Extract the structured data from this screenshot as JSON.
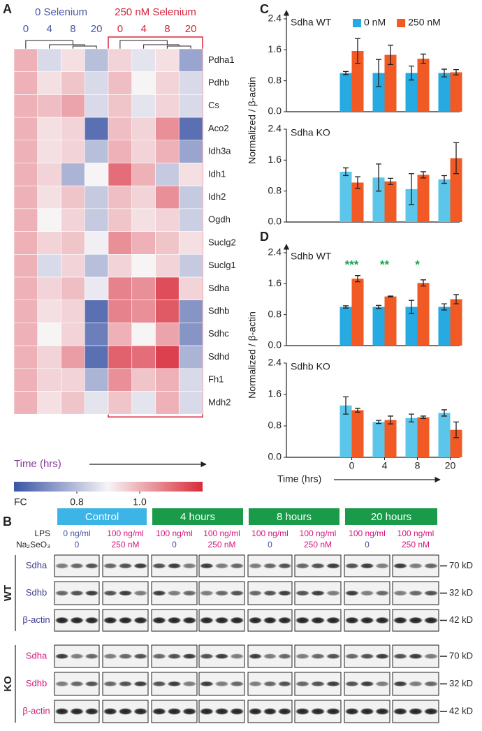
{
  "panel_labels": [
    "A",
    "B",
    "C",
    "D"
  ],
  "chart_data": [
    {
      "type": "heatmap",
      "groups": [
        {
          "label": "0 Selenium",
          "color": "#4a5aa8"
        },
        {
          "label": "250 nM Selenium",
          "color": "#d7263d"
        }
      ],
      "categories": [
        "0",
        "4",
        "8",
        "20",
        "0",
        "4",
        "8",
        "20"
      ],
      "rows": [
        "Pdha1",
        "Pdhb",
        "Cs",
        "Aco2",
        "Idh3a",
        "Idh1",
        "Idh2",
        "Ogdh",
        "Suclg2",
        "Suclg1",
        "Sdha",
        "Sdhb",
        "Sdhc",
        "Sdhd",
        "Fh1",
        "Mdh2"
      ],
      "values": [
        [
          1.0,
          0.85,
          0.93,
          0.8,
          0.95,
          0.87,
          0.93,
          0.75
        ],
        [
          1.0,
          0.93,
          0.97,
          0.85,
          0.98,
          0.9,
          0.95,
          0.85
        ],
        [
          1.0,
          0.98,
          1.02,
          0.85,
          0.97,
          0.87,
          0.95,
          0.85
        ],
        [
          1.0,
          0.93,
          0.95,
          0.65,
          0.98,
          0.95,
          1.05,
          0.65
        ],
        [
          1.0,
          0.93,
          0.95,
          0.8,
          1.0,
          0.95,
          1.0,
          0.75
        ],
        [
          1.0,
          0.95,
          0.78,
          0.9,
          1.1,
          1.0,
          0.82,
          0.93
        ],
        [
          1.0,
          0.93,
          0.97,
          0.82,
          0.98,
          0.95,
          1.05,
          0.82
        ],
        [
          1.0,
          0.9,
          0.95,
          0.82,
          0.97,
          0.93,
          0.95,
          0.83
        ],
        [
          1.0,
          0.95,
          0.97,
          0.89,
          1.05,
          1.0,
          0.97,
          0.93
        ],
        [
          1.0,
          0.85,
          0.95,
          0.8,
          0.95,
          0.9,
          0.95,
          0.82
        ],
        [
          1.0,
          0.95,
          0.98,
          0.88,
          1.07,
          1.05,
          1.15,
          0.95
        ],
        [
          1.0,
          0.93,
          0.95,
          0.65,
          1.07,
          1.05,
          1.13,
          0.72
        ],
        [
          1.0,
          0.9,
          0.95,
          0.68,
          1.0,
          0.9,
          1.02,
          0.72
        ],
        [
          1.0,
          0.95,
          1.03,
          0.65,
          1.12,
          1.1,
          1.17,
          0.78
        ],
        [
          1.0,
          0.95,
          0.95,
          0.78,
          1.05,
          0.97,
          1.0,
          0.85
        ],
        [
          1.0,
          0.93,
          0.97,
          0.87,
          0.97,
          0.87,
          1.0,
          0.85
        ]
      ],
      "zlim": [
        0.6,
        1.2
      ],
      "colormap": [
        "#3b55a5",
        "#f7f4f6",
        "#d92b3a"
      ],
      "colorbar_label": "FC",
      "colorbar_ticks": [
        0.8,
        {
          "value": 1.0,
          "label": "1.0"
        }
      ],
      "x_label": "Time (hrs)",
      "x_label_color": "#8a3a9a"
    },
    {
      "type": "bar",
      "title": "Sdha WT",
      "legend": true,
      "categories": [
        null,
        null,
        null,
        null
      ],
      "series": [
        {
          "name": "0 nM",
          "color": "#27a9e1",
          "values": [
            1.0,
            1.0,
            1.0,
            1.0
          ],
          "errors": [
            0.04,
            0.35,
            0.18,
            0.1
          ]
        },
        {
          "name": "250 nM",
          "color": "#f15a24",
          "values": [
            1.57,
            1.47,
            1.37,
            1.02
          ],
          "errors": [
            0.32,
            0.25,
            0.12,
            0.07
          ]
        }
      ],
      "ylim": [
        0,
        2.4
      ],
      "yticks": [
        {
          "value": 0,
          "label": "0.0"
        },
        0.8,
        1.6,
        2.4
      ],
      "ylabel": "Normalized / β-actin"
    },
    {
      "type": "bar",
      "title": "Sdha KO",
      "categories": [
        null,
        null,
        null,
        null
      ],
      "series": [
        {
          "color": "#5bc5ea",
          "values": [
            1.3,
            1.15,
            0.85,
            1.1
          ],
          "errors": [
            0.1,
            0.35,
            0.4,
            0.1
          ]
        },
        {
          "color": "#f15a24",
          "values": [
            1.02,
            1.05,
            1.22,
            1.65
          ],
          "errors": [
            0.15,
            0.08,
            0.08,
            0.4
          ]
        }
      ],
      "ylim": [
        0,
        2.4
      ],
      "yticks": [
        {
          "value": 0,
          "label": "0.0"
        },
        0.8,
        1.6,
        2.4
      ]
    },
    {
      "type": "bar",
      "title": "Sdhb WT",
      "categories": [
        null,
        null,
        null,
        null
      ],
      "series": [
        {
          "color": "#27a9e1",
          "values": [
            1.0,
            1.0,
            1.0,
            1.0
          ],
          "errors": [
            0.03,
            0.04,
            0.17,
            0.08
          ]
        },
        {
          "color": "#f15a24",
          "values": [
            1.73,
            1.27,
            1.62,
            1.2
          ],
          "errors": [
            0.08,
            0.01,
            0.08,
            0.12
          ]
        }
      ],
      "annotations": [
        "***",
        "**",
        "*",
        null
      ],
      "annotation_color": "#1aa04a",
      "ylim": [
        0,
        2.4
      ],
      "yticks": [
        {
          "value": 0,
          "label": "0.0"
        },
        0.8,
        1.6,
        2.4
      ],
      "ylabel": "Normalized / β-actin"
    },
    {
      "type": "bar",
      "title": "Sdhb KO",
      "categories": [
        "0",
        "4",
        "8",
        "20"
      ],
      "series": [
        {
          "color": "#5bc5ea",
          "values": [
            1.32,
            0.9,
            1.0,
            1.13
          ],
          "errors": [
            0.22,
            0.04,
            0.1,
            0.08
          ]
        },
        {
          "color": "#f15a24",
          "values": [
            1.2,
            0.95,
            1.02,
            0.7
          ],
          "errors": [
            0.05,
            0.1,
            0.03,
            0.2
          ]
        }
      ],
      "ylim": [
        0,
        2.4
      ],
      "yticks": [
        {
          "value": 0,
          "label": "0.0"
        },
        0.8,
        1.6,
        2.4
      ],
      "xlabel": "Time (hrs)"
    }
  ],
  "blot": {
    "conditions": [
      {
        "label": "Control",
        "color": "#3cb4e5"
      },
      {
        "label": "4 hours",
        "color": "#1a9b4a"
      },
      {
        "label": "8 hours",
        "color": "#1a9b4a"
      },
      {
        "label": "20 hours",
        "color": "#1a9b4a"
      }
    ],
    "row_headers": [
      "LPS",
      "Na₂SeO₃"
    ],
    "lps": [
      {
        "label": "0 ng/ml",
        "color": "#3f4fa0"
      },
      {
        "label": "100 ng/ml",
        "color": "#d4157d"
      },
      {
        "label": "100 ng/ml",
        "color": "#d4157d"
      },
      {
        "label": "100 ng/ml",
        "color": "#d4157d"
      },
      {
        "label": "100 ng/ml",
        "color": "#d4157d"
      },
      {
        "label": "100 ng/ml",
        "color": "#d4157d"
      },
      {
        "label": "100 ng/ml",
        "color": "#d4157d"
      },
      {
        "label": "100 ng/ml",
        "color": "#d4157d"
      }
    ],
    "selenium": [
      {
        "label": "0",
        "color": "#3f4fa0"
      },
      {
        "label": "250 nM",
        "color": "#d4157d"
      },
      {
        "label": "0",
        "color": "#3f4fa0"
      },
      {
        "label": "250 nM",
        "color": "#d4157d"
      },
      {
        "label": "0",
        "color": "#3f4fa0"
      },
      {
        "label": "250 nM",
        "color": "#d4157d"
      },
      {
        "label": "0",
        "color": "#3f4fa0"
      },
      {
        "label": "250 nM",
        "color": "#d4157d"
      }
    ],
    "groups": [
      {
        "label": "WT",
        "color": "#3b3b8f",
        "rows": [
          {
            "label": "Sdha",
            "size": "70 kD"
          },
          {
            "label": "Sdhb",
            "size": "32 kD"
          },
          {
            "label": "β-actin",
            "size": "42 kD"
          }
        ]
      },
      {
        "label": "KO",
        "color": "#d4157d",
        "rows": [
          {
            "label": "Sdha",
            "size": "70 kD"
          },
          {
            "label": "Sdhb",
            "size": "32 kD"
          },
          {
            "label": "β-actin",
            "size": "42 kD"
          }
        ]
      }
    ]
  }
}
